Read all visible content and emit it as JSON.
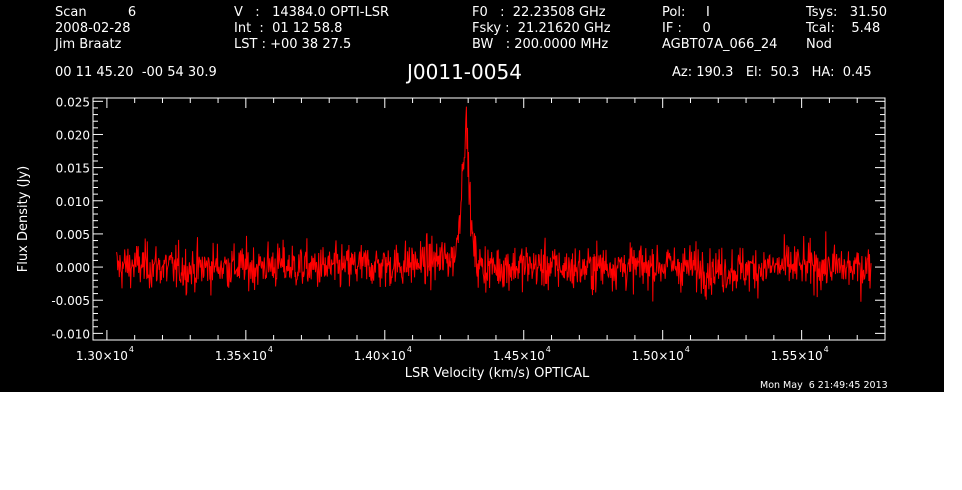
{
  "header": {
    "col1": [
      "Scan          6",
      "2008-02-28",
      "Jim Braatz"
    ],
    "col2": [
      "V   :   14384.0 OPTI-LSR",
      "Int  :  01 12 58.8",
      "LST : +00 38 27.5"
    ],
    "col3": [
      "F0   :  22.23508 GHz",
      "Fsky :  21.21620 GHz",
      "BW   : 200.0000 MHz"
    ],
    "col4": [
      "Pol:     I",
      "IF :     0",
      "AGBT07A_066_24"
    ],
    "col5": [
      "Tsys:   31.50",
      "Tcal:    5.48",
      "Nod"
    ],
    "coords": "00 11 45.20  -00 54 30.9",
    "source": "J0011-0054",
    "pointing": "Az: 190.3   El:  50.3   HA:  0.45",
    "timestamp": "Mon May  6 21:49:45 2013"
  },
  "colors": {
    "background": "#000000",
    "axes": "#ffffff",
    "trace": "#ff0000",
    "page": "#ffffff"
  },
  "chart_data": {
    "type": "line",
    "title": "J0011-0054",
    "xlabel": "LSR Velocity (km/s) OPTICAL",
    "ylabel": "Flux Density (Jy)",
    "xlim": [
      12950,
      15800
    ],
    "ylim": [
      -0.011,
      0.0255
    ],
    "x_ticks": [
      13000,
      13500,
      14000,
      14500,
      15000,
      15500
    ],
    "x_tick_labels": [
      "1.30×10",
      "1.35×10",
      "1.40×10",
      "1.45×10",
      "1.50×10",
      "1.55×10"
    ],
    "x_tick_exponent": "4",
    "y_ticks": [
      -0.01,
      -0.005,
      0.0,
      0.005,
      0.01,
      0.015,
      0.02,
      0.025
    ],
    "y_tick_labels": [
      "-0.010",
      "-0.005",
      "0.000",
      "0.005",
      "0.010",
      "0.015",
      "0.020",
      "0.025"
    ],
    "grid": false,
    "series": [
      {
        "x": [
          13035,
          13100,
          13200,
          13300,
          13400,
          13500,
          13600,
          13700,
          13800,
          13900,
          14000,
          14100,
          14200,
          14250,
          14260,
          14275,
          14285,
          14292,
          14298,
          14305,
          14315,
          14330,
          14350,
          14400,
          14500,
          14600,
          14700,
          14800,
          14900,
          15000,
          15100,
          15200,
          15300,
          15400,
          15500,
          15600,
          15700,
          15750
        ],
        "y": [
          0.0,
          0.0003,
          0.0,
          -0.0003,
          0.0002,
          0.0,
          0.0003,
          0.0,
          -0.0002,
          0.0002,
          0.0002,
          0.0005,
          0.001,
          0.0015,
          0.0035,
          0.011,
          0.0185,
          0.0215,
          0.018,
          0.011,
          0.004,
          0.0008,
          0.0,
          0.0,
          0.0002,
          0.0,
          -0.0003,
          0.0002,
          0.0,
          0.0003,
          0.0,
          -0.0005,
          -0.0003,
          0.0,
          0.0002,
          0.0,
          -0.0002,
          0.0002
        ],
        "noise_rms_jy": 0.0017
      }
    ]
  }
}
